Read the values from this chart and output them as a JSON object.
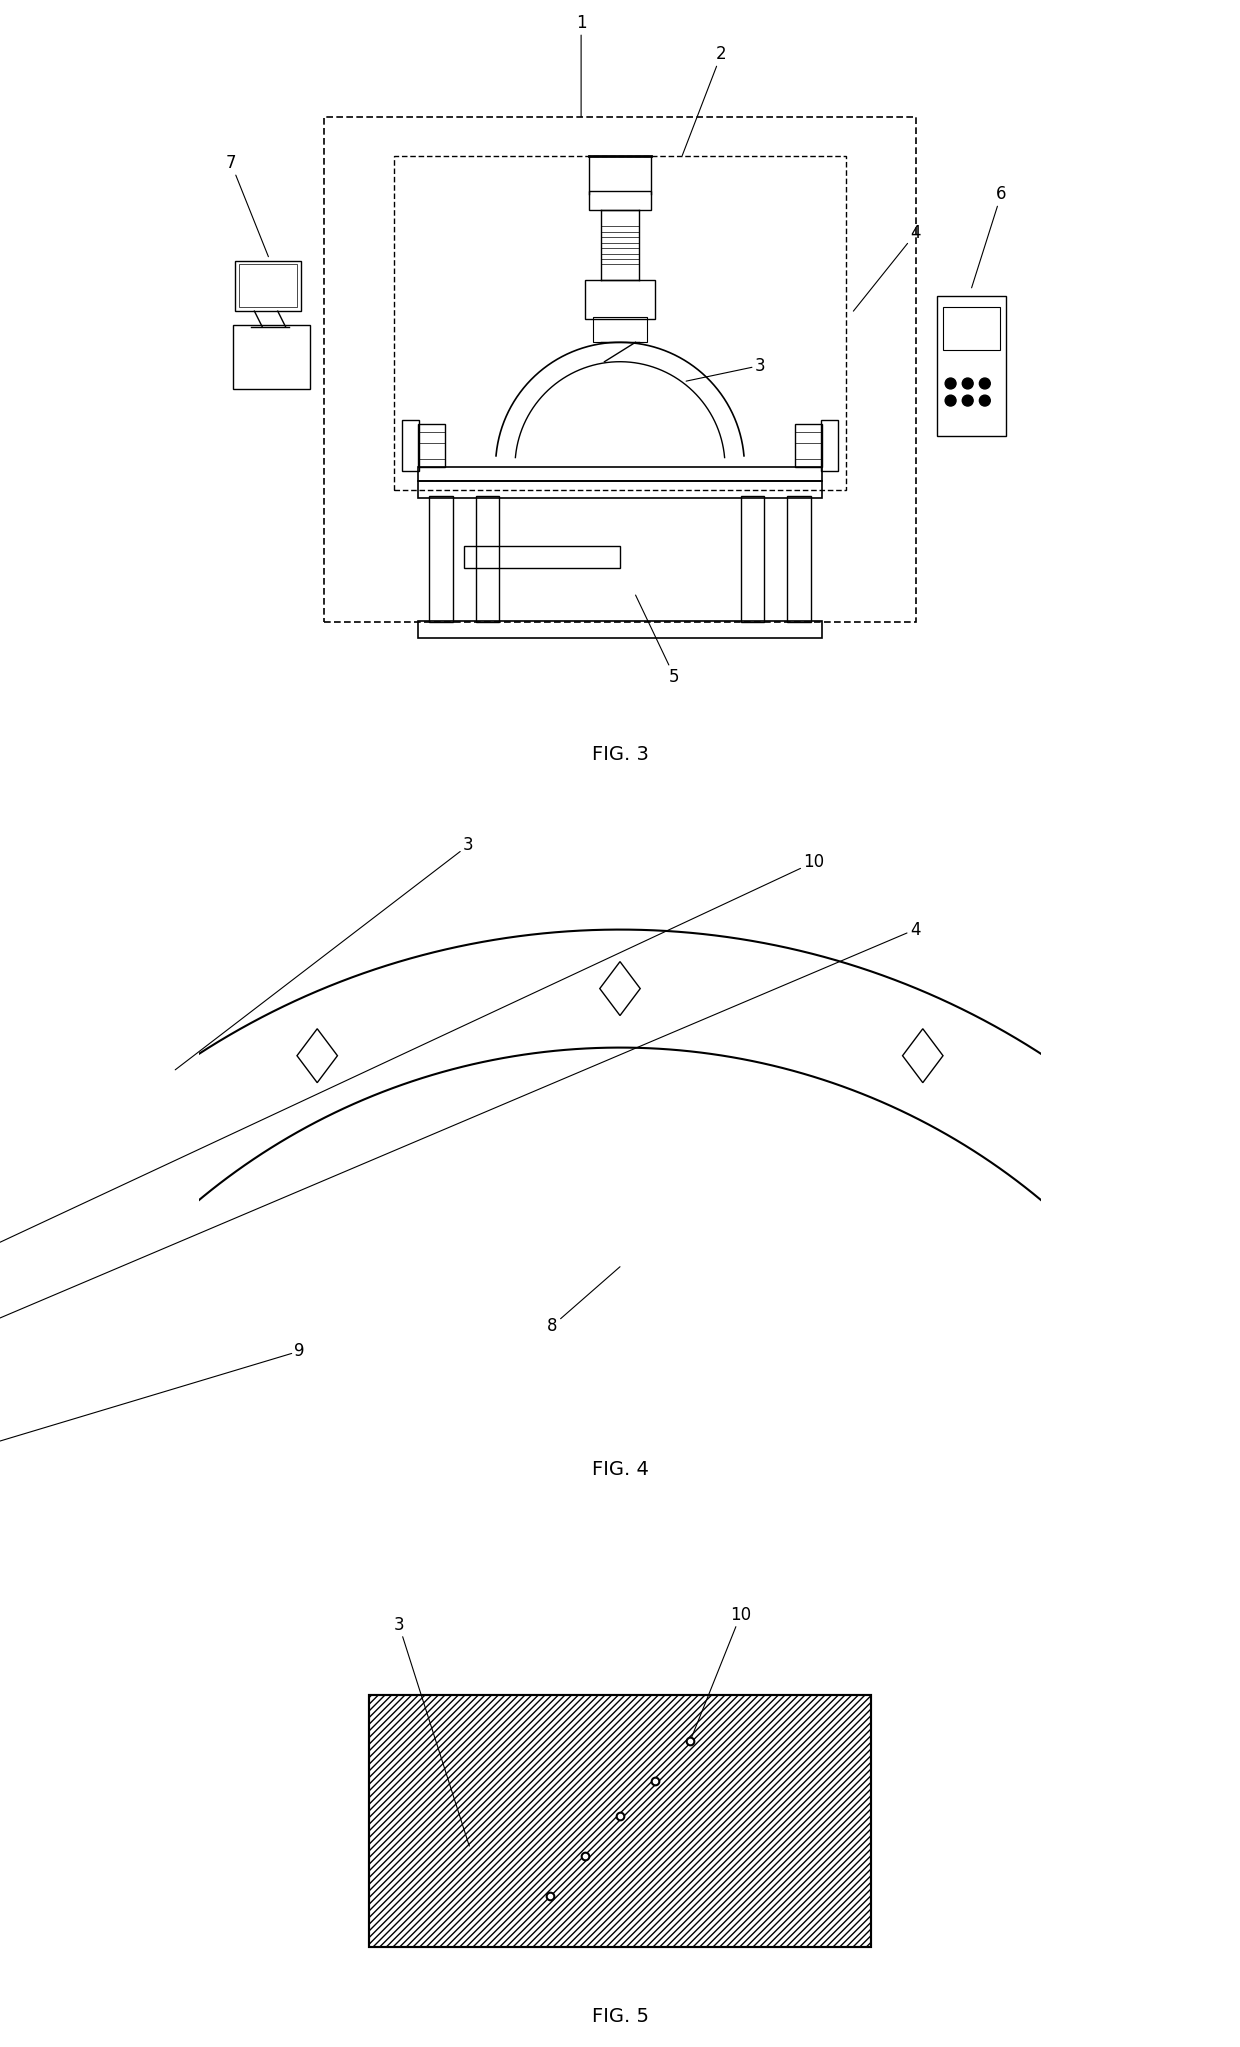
{
  "bg_color": "#ffffff",
  "line_color": "#000000",
  "fig3_label": "FIG. 3",
  "fig4_label": "FIG. 4",
  "fig5_label": "FIG. 5"
}
